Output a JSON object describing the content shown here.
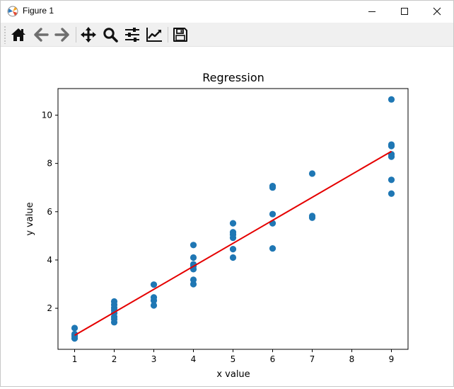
{
  "window": {
    "title": "Figure 1",
    "controls": [
      "minimize",
      "maximize",
      "close"
    ]
  },
  "toolbar": {
    "buttons": [
      {
        "name": "home",
        "icon": "home-icon"
      },
      {
        "name": "back",
        "icon": "arrow-left-icon"
      },
      {
        "name": "forward",
        "icon": "arrow-right-icon"
      },
      {
        "name": "pan",
        "icon": "move-icon"
      },
      {
        "name": "zoom",
        "icon": "magnifier-icon"
      },
      {
        "name": "configure-subplots",
        "icon": "sliders-icon"
      },
      {
        "name": "edit-axis",
        "icon": "line-chart-icon"
      },
      {
        "name": "save",
        "icon": "floppy-disk-icon"
      }
    ]
  },
  "colors": {
    "points": "#1f77b4",
    "fit_line": "#e50000"
  },
  "chart_data": {
    "type": "scatter",
    "title": "Regression",
    "xlabel": "x value",
    "ylabel": "y value",
    "xlim": [
      0.58,
      9.42
    ],
    "ylim": [
      0.3,
      11.1
    ],
    "xticks": [
      "1",
      "2",
      "3",
      "4",
      "5",
      "6",
      "7",
      "8",
      "9"
    ],
    "yticks": [
      "2",
      "4",
      "6",
      "8",
      "10"
    ],
    "grid": false,
    "points": [
      [
        1,
        0.75
      ],
      [
        1,
        0.85
      ],
      [
        1,
        0.93
      ],
      [
        1,
        1.18
      ],
      [
        2,
        1.42
      ],
      [
        2,
        1.55
      ],
      [
        2,
        1.65
      ],
      [
        2,
        1.8
      ],
      [
        2,
        1.92
      ],
      [
        2,
        2.02
      ],
      [
        2,
        2.15
      ],
      [
        2,
        2.28
      ],
      [
        3,
        2.12
      ],
      [
        3,
        2.32
      ],
      [
        3,
        2.45
      ],
      [
        3,
        2.98
      ],
      [
        4,
        3.0
      ],
      [
        4,
        3.18
      ],
      [
        4,
        3.62
      ],
      [
        4,
        3.75
      ],
      [
        4,
        3.82
      ],
      [
        4,
        4.1
      ],
      [
        4,
        4.62
      ],
      [
        5,
        4.1
      ],
      [
        5,
        4.45
      ],
      [
        5,
        4.92
      ],
      [
        5,
        5.05
      ],
      [
        5,
        5.15
      ],
      [
        5,
        5.52
      ],
      [
        6,
        4.48
      ],
      [
        6,
        5.52
      ],
      [
        6,
        5.9
      ],
      [
        6,
        7.0
      ],
      [
        6,
        7.06
      ],
      [
        7,
        5.75
      ],
      [
        7,
        5.82
      ],
      [
        7,
        7.58
      ],
      [
        9,
        6.75
      ],
      [
        9,
        7.32
      ],
      [
        9,
        8.28
      ],
      [
        9,
        8.38
      ],
      [
        9,
        8.72
      ],
      [
        9,
        8.78
      ],
      [
        9,
        10.65
      ]
    ],
    "regression_line": {
      "x": [
        1,
        9
      ],
      "y": [
        0.88,
        8.5
      ]
    }
  }
}
